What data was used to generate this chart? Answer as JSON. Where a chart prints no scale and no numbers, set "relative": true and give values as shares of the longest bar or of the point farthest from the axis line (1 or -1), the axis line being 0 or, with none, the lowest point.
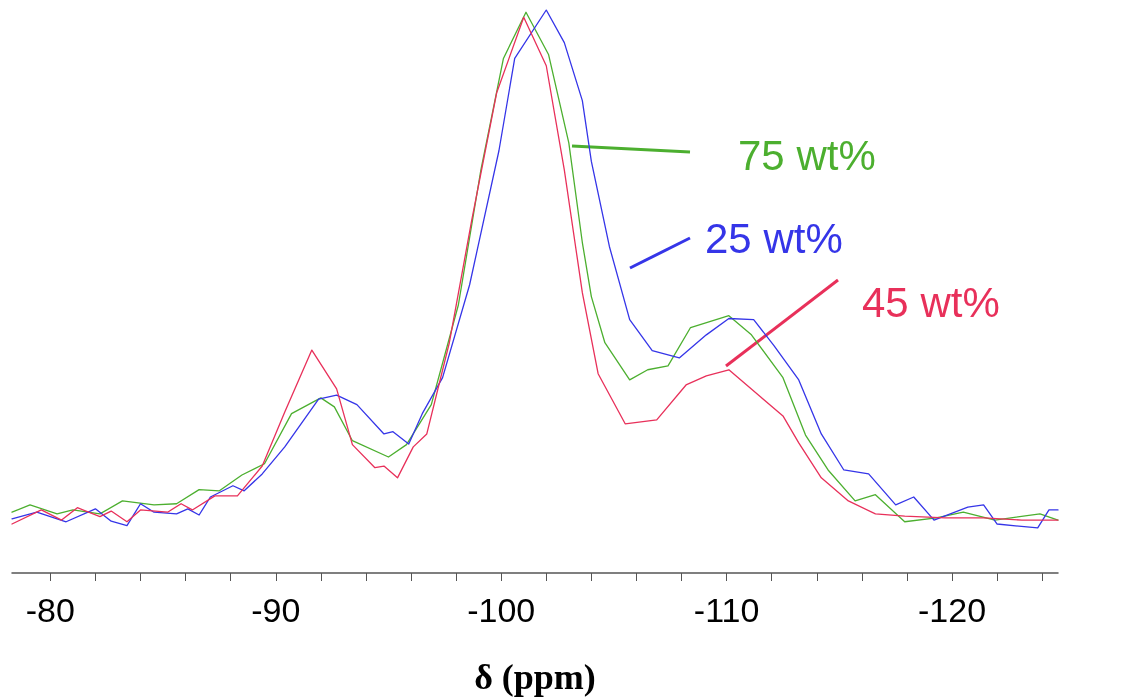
{
  "chart_data": {
    "type": "line",
    "relative": true,
    "xlabel": "δ (ppm)",
    "xlim": [
      -78.3,
      -124.7
    ],
    "xticks": [
      -80,
      {
        "value": -82,
        "label": null
      },
      {
        "value": -84,
        "label": null
      },
      {
        "value": -86,
        "label": null
      },
      {
        "value": -88,
        "label": null
      },
      -90,
      {
        "value": -92,
        "label": null
      },
      {
        "value": -94,
        "label": null
      },
      {
        "value": -96,
        "label": null
      },
      {
        "value": -98,
        "label": null
      },
      -100,
      {
        "value": -102,
        "label": null
      },
      {
        "value": -104,
        "label": null
      },
      {
        "value": -106,
        "label": null
      },
      {
        "value": -108,
        "label": null
      },
      -110,
      {
        "value": -112,
        "label": null
      },
      {
        "value": -114,
        "label": null
      },
      {
        "value": -116,
        "label": null
      },
      {
        "value": -118,
        "label": null
      },
      -120,
      {
        "value": -122,
        "label": null
      },
      {
        "value": -124,
        "label": null
      }
    ],
    "grid": false,
    "legend": "top right",
    "marker": "none",
    "line_style": "solid",
    "series": [
      {
        "name": "75 wt%",
        "color": "#4caf2f",
        "x": [
          -78.3,
          -79.1,
          -80.3,
          -81.0,
          -82.2,
          -83.2,
          -84.6,
          -85.6,
          -86.6,
          -87.5,
          -88.5,
          -89.5,
          -90.7,
          -92.0,
          -92.6,
          -93.4,
          -95.0,
          -95.8,
          -96.9,
          -98.1,
          -99.1,
          -100.1,
          -101.1,
          -102.1,
          -103.0,
          -103.6,
          -104.0,
          -104.6,
          -105.7,
          -106.5,
          -107.4,
          -108.4,
          -110.1,
          -111.1,
          -112.5,
          -113.5,
          -114.5,
          -115.7,
          -116.6,
          -117.9,
          -119.3,
          -120.5,
          -121.9,
          -123.9,
          -124.7
        ],
        "values": [
          0.108,
          0.121,
          0.105,
          0.112,
          0.105,
          0.128,
          0.121,
          0.123,
          0.148,
          0.146,
          0.174,
          0.194,
          0.283,
          0.311,
          0.295,
          0.235,
          0.206,
          0.228,
          0.299,
          0.476,
          0.716,
          0.914,
          0.996,
          0.921,
          0.764,
          0.587,
          0.491,
          0.409,
          0.343,
          0.361,
          0.368,
          0.436,
          0.457,
          0.423,
          0.347,
          0.245,
          0.183,
          0.128,
          0.139,
          0.091,
          0.098,
          0.108,
          0.094,
          0.105,
          0.094
        ]
      },
      {
        "name": "25 wt%",
        "color": "#3535e8",
        "x": [
          -78.3,
          -79.4,
          -80.7,
          -82.0,
          -82.7,
          -83.4,
          -84.0,
          -84.6,
          -85.6,
          -86.1,
          -86.6,
          -87.1,
          -88.1,
          -88.6,
          -89.4,
          -90.4,
          -91.9,
          -92.7,
          -93.6,
          -94.8,
          -95.2,
          -95.9,
          -96.5,
          -97.4,
          -98.6,
          -99.9,
          -100.6,
          -102.0,
          -102.8,
          -103.6,
          -104.0,
          -104.8,
          -105.7,
          -106.7,
          -107.9,
          -109.1,
          -110.1,
          -111.2,
          -112.1,
          -113.2,
          -114.2,
          -115.2,
          -116.3,
          -117.5,
          -118.3,
          -119.2,
          -120.7,
          -121.4,
          -122.0,
          -123.8,
          -124.3,
          -124.7
        ],
        "values": [
          0.096,
          0.108,
          0.091,
          0.114,
          0.092,
          0.084,
          0.123,
          0.108,
          0.105,
          0.114,
          0.103,
          0.135,
          0.155,
          0.146,
          0.176,
          0.224,
          0.309,
          0.316,
          0.299,
          0.247,
          0.251,
          0.229,
          0.283,
          0.347,
          0.512,
          0.75,
          0.914,
          1,
          0.942,
          0.839,
          0.731,
          0.58,
          0.45,
          0.395,
          0.382,
          0.423,
          0.452,
          0.45,
          0.404,
          0.343,
          0.247,
          0.183,
          0.176,
          0.121,
          0.135,
          0.094,
          0.117,
          0.121,
          0.087,
          0.08,
          0.112,
          0.112
        ]
      },
      {
        "name": "45 wt%",
        "color": "#e8305a",
        "x": [
          -78.3,
          -79.6,
          -80.5,
          -81.2,
          -82.2,
          -82.7,
          -83.4,
          -84.0,
          -85.2,
          -85.8,
          -86.3,
          -87.3,
          -88.3,
          -89.4,
          -90.4,
          -91.6,
          -92.7,
          -93.4,
          -94.4,
          -94.8,
          -95.4,
          -96.1,
          -96.7,
          -97.7,
          -98.7,
          -99.8,
          -101.0,
          -102.0,
          -102.8,
          -103.6,
          -104.3,
          -105.5,
          -106.9,
          -108.2,
          -109.1,
          -110.1,
          -111.5,
          -112.5,
          -113.2,
          -114.2,
          -115.4,
          -116.6,
          -117.9,
          -119.7,
          -121.4,
          -123.1,
          -124.7
        ],
        "values": [
          0.087,
          0.112,
          0.094,
          0.116,
          0.1,
          0.11,
          0.091,
          0.112,
          0.108,
          0.123,
          0.112,
          0.137,
          0.137,
          0.19,
          0.286,
          0.396,
          0.327,
          0.228,
          0.187,
          0.19,
          0.169,
          0.224,
          0.247,
          0.409,
          0.628,
          0.853,
          0.987,
          0.901,
          0.716,
          0.498,
          0.354,
          0.265,
          0.272,
          0.334,
          0.35,
          0.361,
          0.313,
          0.279,
          0.231,
          0.169,
          0.128,
          0.105,
          0.101,
          0.098,
          0.098,
          0.094,
          0.094
        ]
      }
    ]
  }
}
